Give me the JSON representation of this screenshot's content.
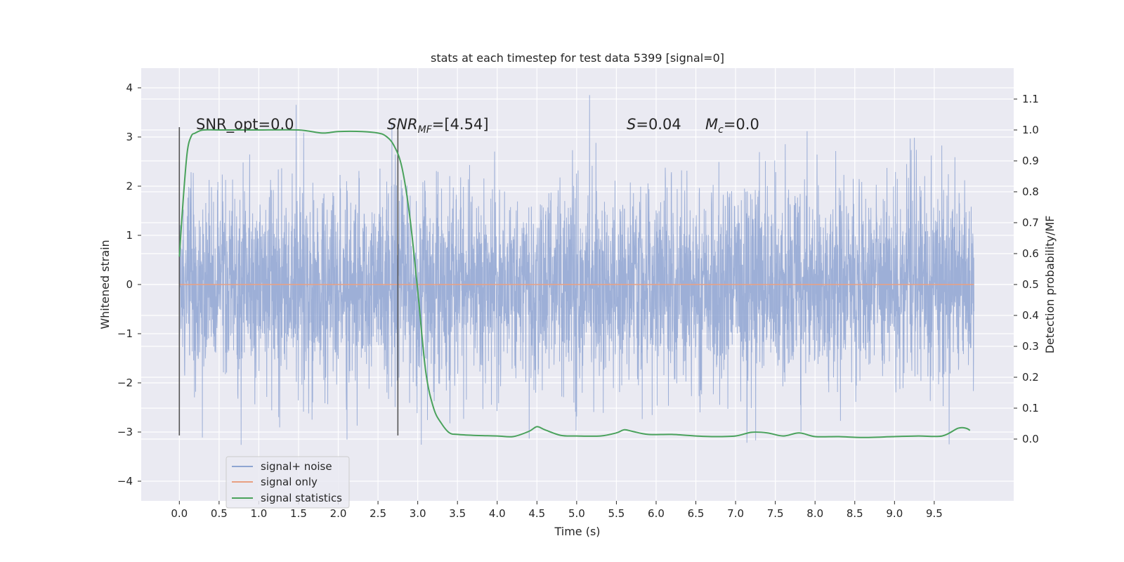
{
  "chart_data": {
    "type": "line",
    "title": "stats at each timestep for test data 5399 [signal=0]",
    "xlabel": "Time (s)",
    "ylabel": "Whitened strain",
    "y2label": "Detection probability/MF",
    "xlim": [
      -0.48,
      10.5
    ],
    "ylim": [
      -4.4,
      4.4
    ],
    "y2lim": [
      -0.2,
      1.2
    ],
    "xticks": [
      "0.0",
      "0.5",
      "1.0",
      "1.5",
      "2.0",
      "2.5",
      "3.0",
      "3.5",
      "4.0",
      "4.5",
      "5.0",
      "5.5",
      "6.0",
      "6.5",
      "7.0",
      "7.5",
      "8.0",
      "8.5",
      "9.0",
      "9.5"
    ],
    "yticks": [
      "4",
      "3",
      "2",
      "1",
      "0",
      "−1",
      "−2",
      "−3",
      "−4"
    ],
    "y2ticks": [
      "1.1",
      "1.0",
      "0.9",
      "0.8",
      "0.7",
      "0.6",
      "0.5",
      "0.4",
      "0.3",
      "0.2",
      "0.1",
      "0.0"
    ],
    "grid": true,
    "legend_position": "lower-left",
    "annotations": {
      "snr_opt": "SNR_opt=0.0",
      "snr_mf_main": "SNR",
      "snr_mf_sub": "MF",
      "snr_mf_val": "=[4.54]",
      "s_main": "S",
      "s_val": "=0.04",
      "mc_main": "M",
      "mc_sub": "c",
      "mc_val": "=0.0"
    },
    "vertical_markers_x": [
      0.0,
      2.75
    ],
    "series": [
      {
        "name": "signal+ noise",
        "color": "#8fa5d2",
        "axis": "left",
        "description_values": "whitened noise, approx. within [-3.9, 4.1], plotted over t in [0, 10]",
        "noise_sigma": 1.0,
        "x_range": [
          0.0,
          10.0
        ]
      },
      {
        "name": "signal only",
        "color": "#e8a081",
        "axis": "left",
        "x": [
          0.0,
          10.0
        ],
        "y": [
          0.0,
          0.0
        ]
      },
      {
        "name": "signal statistics",
        "color": "#4aa25c",
        "axis": "right",
        "x": [
          0.0,
          0.05,
          0.1,
          0.15,
          0.2,
          0.3,
          0.5,
          1.0,
          1.5,
          1.8,
          2.0,
          2.3,
          2.5,
          2.6,
          2.7,
          2.8,
          2.9,
          3.0,
          3.1,
          3.2,
          3.3,
          3.4,
          3.5,
          3.7,
          4.0,
          4.2,
          4.4,
          4.5,
          4.6,
          4.8,
          5.0,
          5.3,
          5.5,
          5.6,
          5.7,
          5.9,
          6.2,
          6.5,
          6.7,
          7.0,
          7.2,
          7.4,
          7.6,
          7.8,
          8.0,
          8.3,
          8.6,
          9.0,
          9.3,
          9.6,
          9.8,
          9.9,
          9.95
        ],
        "y": [
          0.59,
          0.78,
          0.93,
          0.98,
          0.99,
          1.0,
          1.0,
          1.0,
          1.0,
          0.99,
          0.995,
          0.995,
          0.99,
          0.98,
          0.95,
          0.88,
          0.72,
          0.48,
          0.22,
          0.1,
          0.05,
          0.02,
          0.015,
          0.012,
          0.01,
          0.008,
          0.025,
          0.04,
          0.03,
          0.012,
          0.01,
          0.01,
          0.02,
          0.03,
          0.025,
          0.015,
          0.015,
          0.01,
          0.008,
          0.01,
          0.022,
          0.02,
          0.01,
          0.02,
          0.008,
          0.008,
          0.005,
          0.008,
          0.01,
          0.01,
          0.035,
          0.035,
          0.028
        ]
      }
    ]
  },
  "legend": {
    "items": [
      {
        "label": "signal+ noise",
        "color": "#8fa5d2"
      },
      {
        "label": "signal only",
        "color": "#e8a081"
      },
      {
        "label": "signal statistics",
        "color": "#4aa25c"
      }
    ]
  },
  "colors": {
    "plot_background": "#eaeaf2",
    "grid": "#ffffff",
    "marker": "#555555"
  }
}
